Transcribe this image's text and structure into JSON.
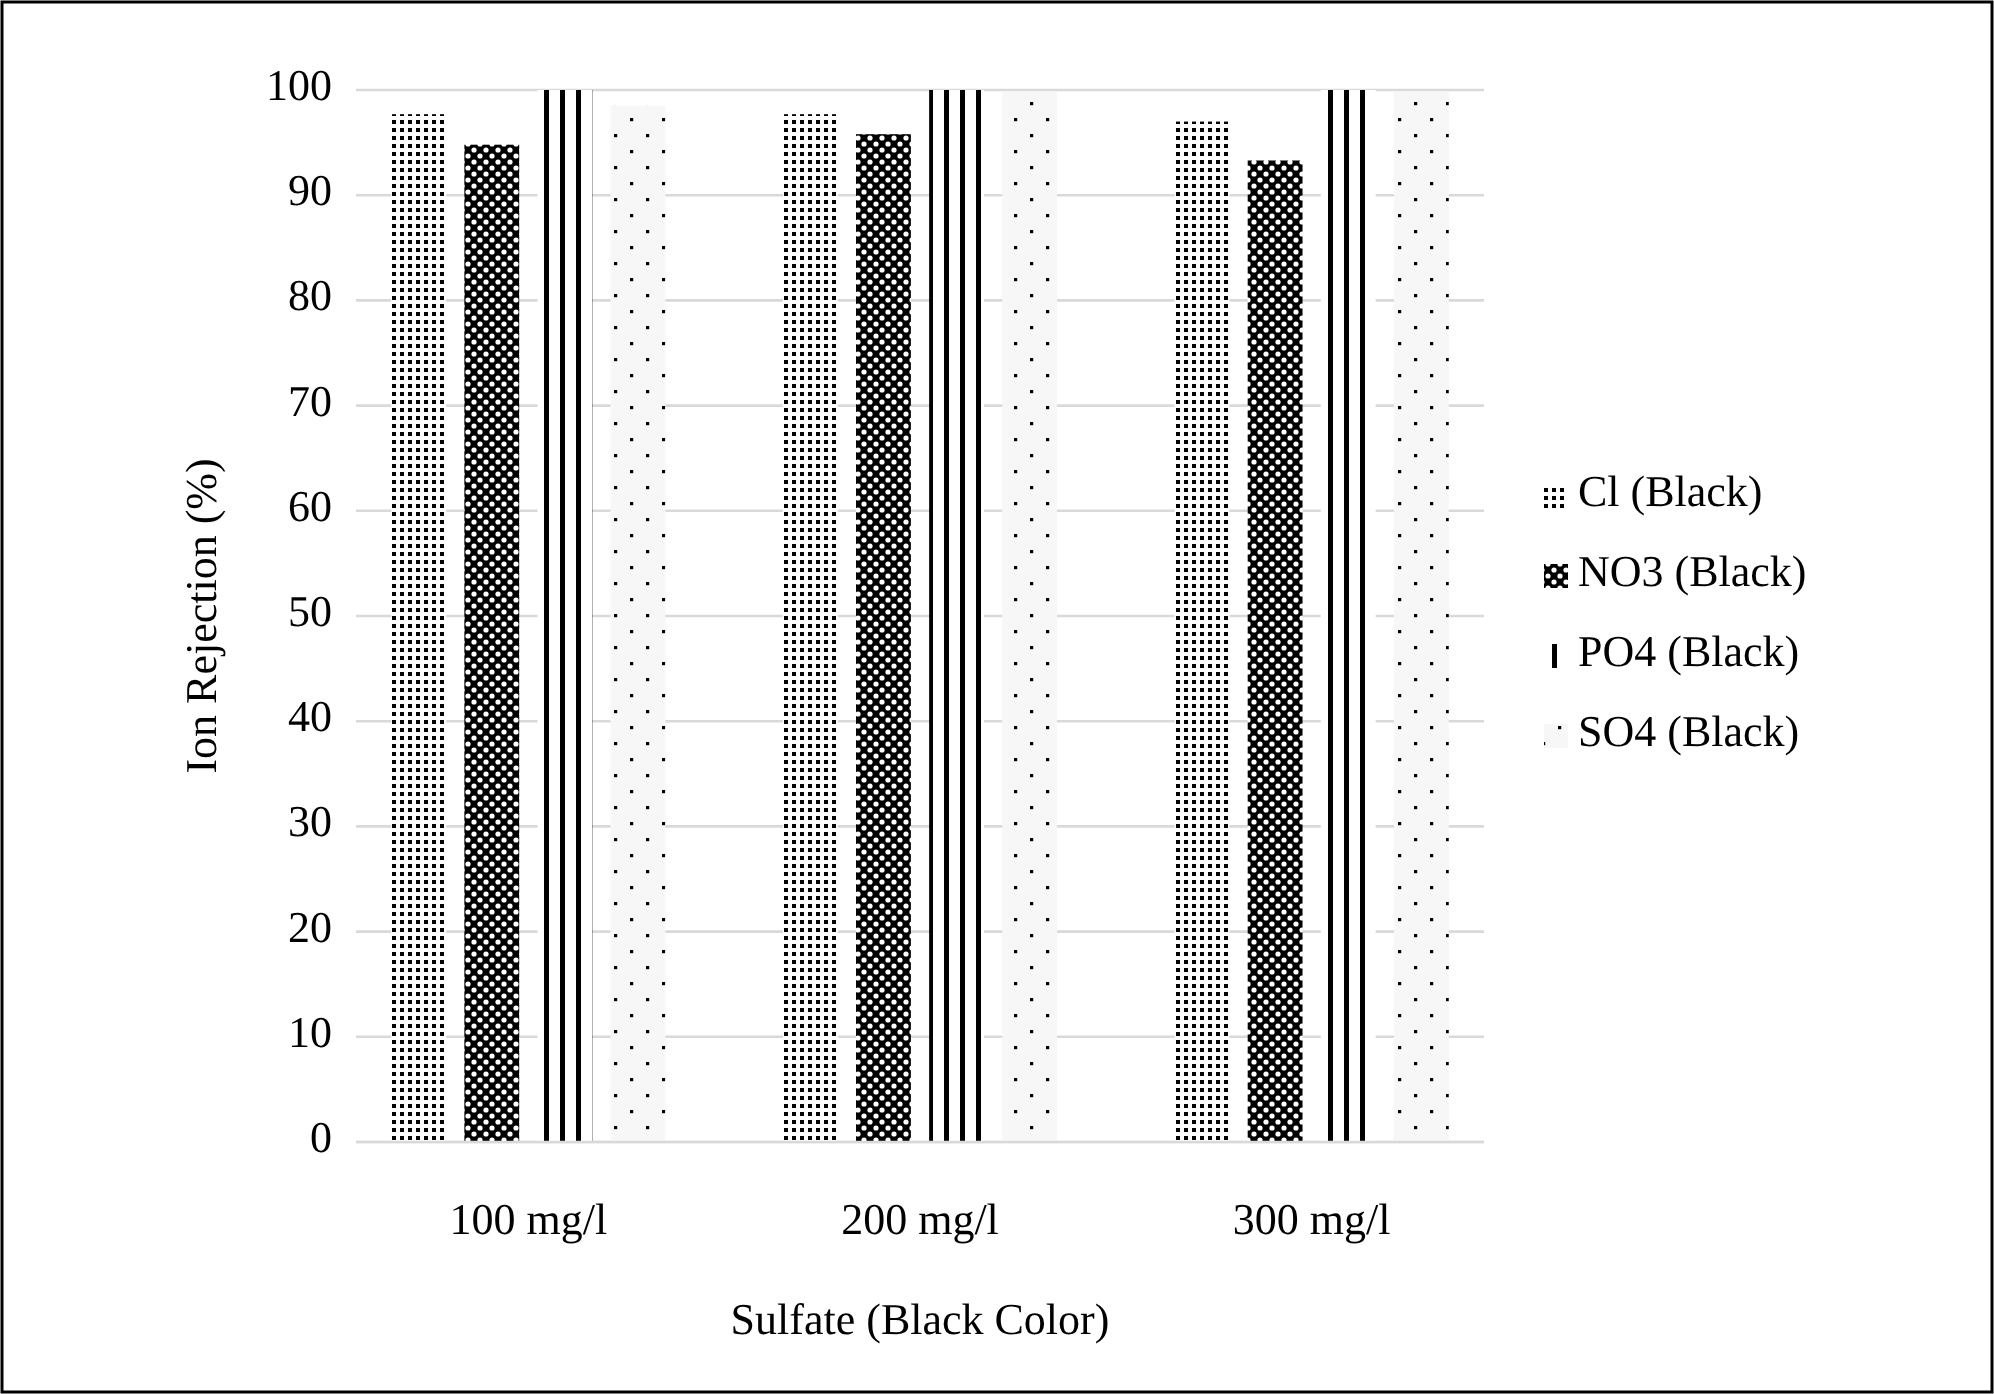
{
  "chart_data": {
    "type": "bar",
    "xlabel": "Sulfate  (Black Color)",
    "ylabel": "Ion Rejection (%)",
    "categories": [
      "100 mg/l",
      "200 mg/l",
      "300 mg/l"
    ],
    "series": [
      {
        "name": "Cl (Black)",
        "color": "#000000",
        "values": [
          97.7,
          97.7,
          97.0
        ]
      },
      {
        "name": "NO3 (Black)",
        "color": "#000000",
        "values": [
          94.8,
          95.8,
          93.3
        ]
      },
      {
        "name": "PO4 (Black)",
        "color": "#000000",
        "values": [
          100,
          100,
          100
        ]
      },
      {
        "name": "SO4 (Black)",
        "color": "#000000",
        "values": [
          98.5,
          99.9,
          99.9
        ]
      }
    ],
    "ylim": [
      0,
      100
    ],
    "yticks": [
      0,
      10,
      20,
      30,
      40,
      50,
      60,
      70,
      80,
      90,
      100
    ],
    "grid": "y",
    "legend": "right"
  }
}
